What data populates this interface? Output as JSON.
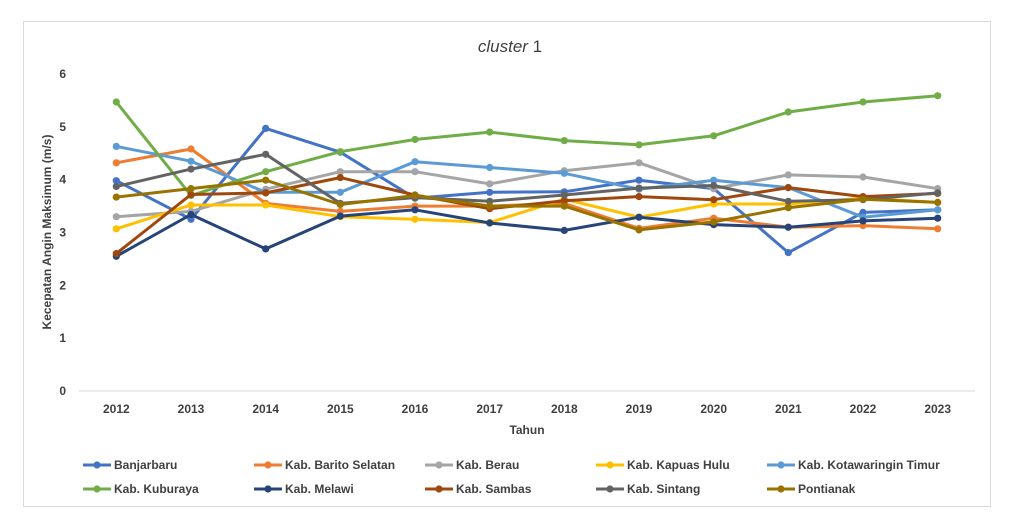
{
  "chart_data": {
    "type": "line",
    "title_italic": "cluster",
    "title_suffix": " 1",
    "xlabel": "Tahun",
    "ylabel": "Kecepatan Angin Maksimum (m/s)",
    "ylim": [
      0,
      6
    ],
    "yticks": [
      "0",
      "1",
      "2",
      "3",
      "4",
      "5",
      "6"
    ],
    "grid": false,
    "legend_position": "bottom",
    "categories": [
      "2012",
      "2013",
      "2014",
      "2015",
      "2016",
      "2017",
      "2018",
      "2019",
      "2020",
      "2021",
      "2022",
      "2023"
    ],
    "series": [
      {
        "name": "Banjarbaru",
        "color": "#4472C4",
        "values": [
          3.98,
          3.25,
          4.97,
          4.52,
          3.65,
          3.76,
          3.77,
          3.99,
          3.83,
          2.62,
          3.38,
          3.43
        ]
      },
      {
        "name": "Kab. Barito Selatan",
        "color": "#ED7D31",
        "values": [
          4.32,
          4.58,
          3.55,
          3.4,
          3.5,
          3.5,
          3.55,
          3.08,
          3.27,
          3.1,
          3.13,
          3.07
        ]
      },
      {
        "name": "Kab. Berau",
        "color": "#A5A5A5",
        "values": [
          3.3,
          3.4,
          3.82,
          4.15,
          4.15,
          3.92,
          4.17,
          4.32,
          3.83,
          4.09,
          4.05,
          3.83
        ]
      },
      {
        "name": "Kab. Kapuas Hulu",
        "color": "#FFC000",
        "values": [
          3.07,
          3.52,
          3.52,
          3.3,
          3.25,
          3.19,
          3.63,
          3.29,
          3.54,
          3.54,
          3.65,
          3.57
        ]
      },
      {
        "name": "Kab. Kotawaringin Timur",
        "color": "#5B9BD5",
        "values": [
          4.63,
          4.35,
          3.76,
          3.76,
          4.34,
          4.23,
          4.12,
          3.82,
          3.99,
          3.85,
          3.29,
          3.43
        ]
      },
      {
        "name": "Kab. Kuburaya",
        "color": "#70AD47",
        "values": [
          5.47,
          3.7,
          4.15,
          4.53,
          4.76,
          4.9,
          4.74,
          4.66,
          4.83,
          5.28,
          5.47,
          5.59
        ]
      },
      {
        "name": "Kab. Melawi",
        "color": "#264478",
        "values": [
          2.55,
          3.34,
          2.69,
          3.31,
          3.43,
          3.18,
          3.04,
          3.29,
          3.15,
          3.1,
          3.22,
          3.27
        ]
      },
      {
        "name": "Kab. Sambas",
        "color": "#9E480E",
        "values": [
          2.6,
          3.72,
          3.75,
          4.04,
          3.71,
          3.45,
          3.6,
          3.68,
          3.62,
          3.85,
          3.68,
          3.74
        ]
      },
      {
        "name": "Kab. Sintang",
        "color": "#636363",
        "values": [
          3.87,
          4.2,
          4.48,
          3.55,
          3.66,
          3.59,
          3.71,
          3.84,
          3.89,
          3.59,
          3.62,
          3.75
        ]
      },
      {
        "name": "Pontianak",
        "color": "#997300",
        "values": [
          3.67,
          3.83,
          3.99,
          3.53,
          3.7,
          3.5,
          3.5,
          3.05,
          3.2,
          3.47,
          3.63,
          3.57
        ]
      }
    ]
  }
}
